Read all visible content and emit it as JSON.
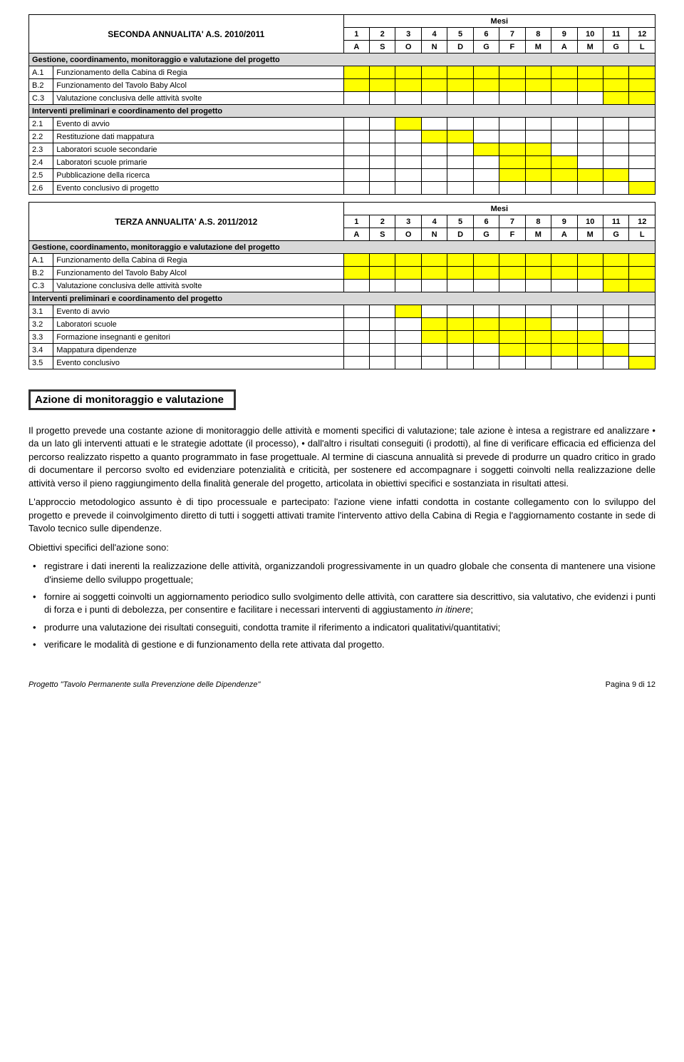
{
  "gantt1": {
    "mesi": "Mesi",
    "title": "SECONDA ANNUALITA' A.S. 2010/2011",
    "nums": [
      "1",
      "2",
      "3",
      "4",
      "5",
      "6",
      "7",
      "8",
      "9",
      "10",
      "11",
      "12"
    ],
    "months": [
      "A",
      "S",
      "O",
      "N",
      "D",
      "G",
      "F",
      "M",
      "A",
      "M",
      "G",
      "L"
    ],
    "section1": "Gestione, coordinamento, monitoraggio e valutazione del progetto",
    "rows1": [
      {
        "code": "A.1",
        "label": "Funzionamento della Cabina di Regia",
        "fill": [
          1,
          1,
          1,
          1,
          1,
          1,
          1,
          1,
          1,
          1,
          1,
          1
        ]
      },
      {
        "code": "B.2",
        "label": "Funzionamento del Tavolo Baby Alcol",
        "fill": [
          1,
          1,
          1,
          1,
          1,
          1,
          1,
          1,
          1,
          1,
          1,
          1
        ]
      },
      {
        "code": "C.3",
        "label": "Valutazione conclusiva delle attività svolte",
        "fill": [
          0,
          0,
          0,
          0,
          0,
          0,
          0,
          0,
          0,
          0,
          1,
          1
        ]
      }
    ],
    "section2": "Interventi preliminari e coordinamento del progetto",
    "rows2": [
      {
        "code": "2.1",
        "label": "Evento di avvio",
        "fill": [
          0,
          0,
          1,
          0,
          0,
          0,
          0,
          0,
          0,
          0,
          0,
          0
        ]
      },
      {
        "code": "2.2",
        "label": "Restituzione dati mappatura",
        "fill": [
          0,
          0,
          0,
          1,
          1,
          0,
          0,
          0,
          0,
          0,
          0,
          0
        ]
      },
      {
        "code": "2.3",
        "label": "Laboratori scuole secondarie",
        "fill": [
          0,
          0,
          0,
          0,
          0,
          1,
          1,
          1,
          0,
          0,
          0,
          0
        ]
      },
      {
        "code": "2.4",
        "label": "Laboratori scuole primarie",
        "fill": [
          0,
          0,
          0,
          0,
          0,
          0,
          1,
          1,
          1,
          0,
          0,
          0
        ]
      },
      {
        "code": "2.5",
        "label": "Pubblicazione della ricerca",
        "fill": [
          0,
          0,
          0,
          0,
          0,
          0,
          1,
          1,
          1,
          1,
          1,
          0
        ]
      },
      {
        "code": "2.6",
        "label": "Evento conclusivo di progetto",
        "fill": [
          0,
          0,
          0,
          0,
          0,
          0,
          0,
          0,
          0,
          0,
          0,
          1
        ]
      }
    ]
  },
  "gantt2": {
    "mesi": "Mesi",
    "title": "TERZA ANNUALITA' A.S. 2011/2012",
    "nums": [
      "1",
      "2",
      "3",
      "4",
      "5",
      "6",
      "7",
      "8",
      "9",
      "10",
      "11",
      "12"
    ],
    "months": [
      "A",
      "S",
      "O",
      "N",
      "D",
      "G",
      "F",
      "M",
      "A",
      "M",
      "G",
      "L"
    ],
    "section1": "Gestione, coordinamento, monitoraggio e valutazione del progetto",
    "rows1": [
      {
        "code": "A.1",
        "label": "Funzionamento della Cabina di Regia",
        "fill": [
          1,
          1,
          1,
          1,
          1,
          1,
          1,
          1,
          1,
          1,
          1,
          1
        ]
      },
      {
        "code": "B.2",
        "label": "Funzionamento del Tavolo Baby Alcol",
        "fill": [
          1,
          1,
          1,
          1,
          1,
          1,
          1,
          1,
          1,
          1,
          1,
          1
        ]
      },
      {
        "code": "C.3",
        "label": "Valutazione conclusiva delle attività svolte",
        "fill": [
          0,
          0,
          0,
          0,
          0,
          0,
          0,
          0,
          0,
          0,
          1,
          1
        ]
      }
    ],
    "section2": "Interventi preliminari e coordinamento del progetto",
    "rows2": [
      {
        "code": "3.1",
        "label": "Evento di avvio",
        "fill": [
          0,
          0,
          1,
          0,
          0,
          0,
          0,
          0,
          0,
          0,
          0,
          0
        ]
      },
      {
        "code": "3.2",
        "label": "Laboratori scuole",
        "fill": [
          0,
          0,
          0,
          1,
          1,
          1,
          1,
          1,
          0,
          0,
          0,
          0
        ]
      },
      {
        "code": "3.3",
        "label": "Formazione insegnanti e genitori",
        "fill": [
          0,
          0,
          0,
          1,
          1,
          1,
          1,
          1,
          1,
          1,
          0,
          0
        ]
      },
      {
        "code": "3.4",
        "label": "Mappatura dipendenze",
        "fill": [
          0,
          0,
          0,
          0,
          0,
          0,
          1,
          1,
          1,
          1,
          1,
          0
        ]
      },
      {
        "code": "3.5",
        "label": "Evento conclusivo",
        "fill": [
          0,
          0,
          0,
          0,
          0,
          0,
          0,
          0,
          0,
          0,
          0,
          1
        ]
      }
    ]
  },
  "heading": "Azione di monitoraggio e valutazione",
  "para1": "Il progetto prevede una costante azione di monitoraggio delle attività e momenti specifici di valutazione; tale azione è intesa a registrare ed analizzare • da un lato gli interventi attuati e le strategie adottate (il processo), • dall'altro i risultati conseguiti (i prodotti), al fine di verificare efficacia ed efficienza del percorso realizzato rispetto a quanto programmato in fase progettuale. Al termine di ciascuna annualità si prevede di produrre un quadro critico in grado di documentare il percorso svolto ed evidenziare potenzialità e criticità,  per sostenere ed accompagnare i soggetti coinvolti nella realizzazione delle attività verso il pieno raggiungimento della finalità generale del progetto, articolata in obiettivi specifici e sostanziata in risultati attesi.",
  "para2": "L'approccio metodologico assunto è di tipo processuale e partecipato: l'azione viene infatti condotta in costante collegamento con lo sviluppo del progetto e prevede il coinvolgimento diretto di tutti i soggetti attivati tramite l'intervento attivo della Cabina di Regia e l'aggiornamento costante in sede di Tavolo tecnico sulle dipendenze.",
  "para3": "Obiettivi specifici dell'azione sono:",
  "bullets": [
    "registrare i dati inerenti la realizzazione delle attività, organizzandoli progressivamente in un quadro globale che consenta di mantenere una visione d'insieme dello sviluppo progettuale;",
    "fornire ai soggetti coinvolti un aggiornamento periodico sullo svolgimento delle attività, con carattere sia descrittivo, sia valutativo, che evidenzi i punti di forza e i punti di debolezza, per consentire e facilitare i necessari interventi di aggiustamento ",
    "produrre una valutazione dei risultati conseguiti, condotta tramite il riferimento a indicatori qualitativi/quantitativi;",
    "verificare le modalità di gestione e di funzionamento della rete attivata dal progetto."
  ],
  "bullet2_tail": "in itinere",
  "bullet2_end": ";",
  "footer_left_pre": "Progetto ",
  "footer_left_it": "\"Tavolo Permanente sulla Prevenzione delle Dipendenze\"",
  "footer_right": "Pagina 9 di 12",
  "colors": {
    "yellow": "#ffff00",
    "section_bg": "#d9d9d9",
    "border": "#000000"
  }
}
